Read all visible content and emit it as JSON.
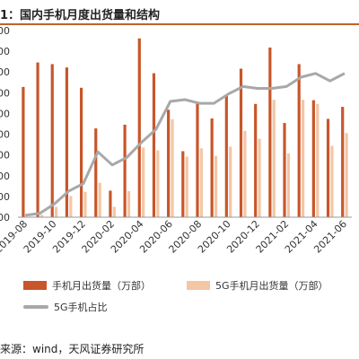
{
  "header": {
    "title": "1：国内手机月度出货量和结构"
  },
  "colors": {
    "accent": "#c0632a",
    "bar_total": "#c8562a",
    "bar_5g": "#f3c6a5",
    "line_share": "#a8a8a8",
    "axis": "#999999"
  },
  "chart_data": {
    "type": "bar",
    "title": "",
    "x": [
      "2019-08",
      "2019-09",
      "2019-10",
      "2019-11",
      "2019-12",
      "2020-01",
      "2020-02",
      "2020-03",
      "2020-04",
      "2020-05",
      "2020-06",
      "2020-07",
      "2020-08",
      "2020-09",
      "2020-10",
      "2020-11",
      "2020-12",
      "2021-01",
      "2021-02",
      "2021-03",
      "2021-04",
      "2021-05",
      "2021-06"
    ],
    "x_tick_labels": [
      "2019-08",
      "2019-10",
      "2019-12",
      "2020-02",
      "2020-04",
      "2020-06",
      "2020-08",
      "2020-10",
      "2020-12",
      "2021-02",
      "2021-04",
      "2021-06"
    ],
    "y_tick_labels": [
      "00",
      "00",
      "00",
      "00",
      "00",
      "00",
      "00",
      "00",
      "00",
      "00"
    ],
    "ylim": [
      0,
      4500
    ],
    "series": [
      {
        "name": "手机月出货量（万部）",
        "axis": "left",
        "kind": "bar",
        "values": [
          3140,
          3730,
          3690,
          3610,
          3120,
          2140,
          640,
          2230,
          4310,
          3470,
          2590,
          1590,
          2780,
          2380,
          2930,
          3580,
          2730,
          4090,
          2270,
          3690,
          2820,
          2370,
          2660
        ]
      },
      {
        "name": "5G手机月出货量（万部）",
        "axis": "left",
        "kind": "bar",
        "values": [
          0,
          60,
          250,
          510,
          610,
          830,
          250,
          630,
          1680,
          1610,
          2360,
          1460,
          1660,
          1480,
          1700,
          2080,
          1890,
          2830,
          1540,
          2830,
          2730,
          1720,
          2030
        ]
      },
      {
        "name": "5G手机占比",
        "axis": "right",
        "kind": "line",
        "values": [
          0.01,
          0.02,
          0.07,
          0.14,
          0.18,
          0.35,
          0.28,
          0.32,
          0.4,
          0.47,
          0.62,
          0.63,
          0.61,
          0.61,
          0.66,
          0.7,
          0.69,
          0.69,
          0.7,
          0.75,
          0.77,
          0.73,
          0.77
        ]
      }
    ]
  },
  "source": {
    "text": "来源：wind，天风证券研究所"
  }
}
